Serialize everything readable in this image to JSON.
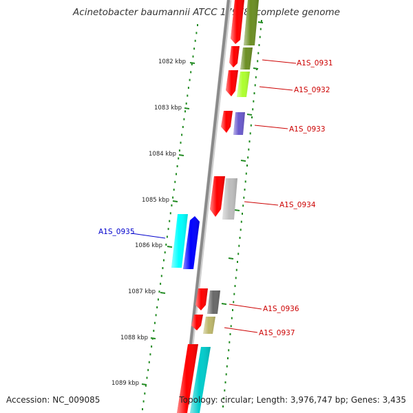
{
  "title": "Acinetobacter baumannii ATCC 17978, complete genome",
  "accession": "Accession: NC_009085",
  "topology": "Topology: circular; Length: 3,976,747 bp; Genes: 3,435",
  "colors": {
    "backbone": "#8a8a8a",
    "dotted_track": "#228b22",
    "cds_forward": "#ff0000",
    "cds_reverse": "#ff0000",
    "label_forward": "#cc0000",
    "label_reverse": "#0000cc"
  },
  "scale": {
    "ticks": [
      {
        "label": "1082 kbp"
      },
      {
        "label": "1083 kbp"
      },
      {
        "label": "1084 kbp"
      },
      {
        "label": "1085 kbp"
      },
      {
        "label": "1086 kbp"
      },
      {
        "label": "1087 kbp"
      },
      {
        "label": "1088 kbp"
      },
      {
        "label": "1089 kbp"
      }
    ]
  },
  "genes": [
    {
      "label": "",
      "strand": "+",
      "cog_color": "#6b8e23"
    },
    {
      "label": "A1S_0931",
      "strand": "+",
      "cog_color": "#6b8e23"
    },
    {
      "label": "A1S_0932",
      "strand": "+",
      "cog_color": "#adff2f"
    },
    {
      "label": "A1S_0933",
      "strand": "+",
      "cog_color": "#6a5acd"
    },
    {
      "label": "A1S_0934",
      "strand": "+",
      "cog_color": "#bebebe"
    },
    {
      "label": "A1S_0935",
      "strand": "-",
      "cog_color": "#00ffff"
    },
    {
      "label": "A1S_0936",
      "strand": "+",
      "cog_color": "#696969"
    },
    {
      "label": "A1S_0937",
      "strand": "+",
      "cog_color": "#bdb76b"
    },
    {
      "label": "",
      "strand": "+",
      "cog_color": "#00cccc"
    }
  ]
}
